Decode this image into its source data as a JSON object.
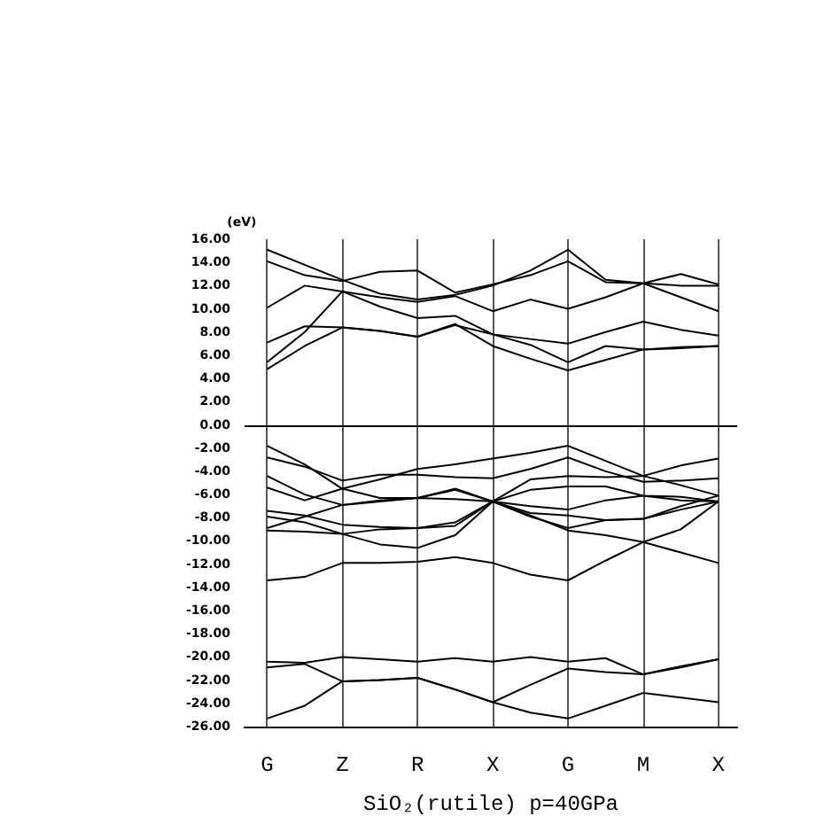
{
  "chart_data": {
    "type": "line",
    "xlabel": "SiO₂(rutile) p=40GPa",
    "ylabel": "(eV)",
    "categories": [
      "G",
      null,
      "Z",
      null,
      "R",
      null,
      "X",
      null,
      "G",
      null,
      "M",
      null,
      "X"
    ],
    "ylim": [
      -26,
      16
    ],
    "yticks": [
      {
        "value": -26,
        "label": "-26.00"
      },
      {
        "value": -24,
        "label": "-24.00"
      },
      {
        "value": -22,
        "label": "-22.00"
      },
      {
        "value": -20,
        "label": "-20.00"
      },
      {
        "value": -18,
        "label": "-18.00"
      },
      {
        "value": -16,
        "label": "-16.00"
      },
      {
        "value": -14,
        "label": "-14.00"
      },
      {
        "value": -12,
        "label": "-12.00"
      },
      {
        "value": -10,
        "label": "-10.00"
      },
      {
        "value": -8,
        "label": "-8.00"
      },
      {
        "value": -6,
        "label": "-6.00"
      },
      {
        "value": -4,
        "label": "-4.00"
      },
      {
        "value": -2,
        "label": "-2.00"
      },
      {
        "value": 0,
        "label": "0.00"
      },
      {
        "value": 2,
        "label": "2.00"
      },
      {
        "value": 4,
        "label": "4.00"
      },
      {
        "value": 6,
        "label": "6.00"
      },
      {
        "value": 8,
        "label": "8.00"
      },
      {
        "value": 10,
        "label": "10.00"
      },
      {
        "value": 12,
        "label": "12.00"
      },
      {
        "value": 14,
        "label": "14.00"
      },
      {
        "value": 16,
        "label": "16.00"
      }
    ],
    "grid": "x",
    "marker": "none",
    "line_style": "solid",
    "ref_lines": [
      {
        "axis": "y",
        "value": 0,
        "color": "#000000"
      }
    ],
    "series": [
      {
        "color": "#000000",
        "values": [
          4.8,
          6.8,
          8.4,
          8.1,
          7.6,
          8.7,
          6.8,
          5.7,
          4.7,
          5.6,
          6.5,
          6.6,
          6.8
        ]
      },
      {
        "color": "#000000",
        "values": [
          5.4,
          8.0,
          11.5,
          10.2,
          9.2,
          9.4,
          7.8,
          6.9,
          5.4,
          6.8,
          6.5,
          6.7,
          6.8
        ]
      },
      {
        "color": "#000000",
        "values": [
          7.1,
          8.5,
          8.4,
          8.1,
          7.6,
          8.6,
          7.8,
          7.4,
          7.0,
          8.0,
          8.9,
          8.2,
          7.7
        ]
      },
      {
        "color": "#000000",
        "values": [
          10.1,
          12.0,
          11.5,
          11.0,
          10.6,
          11.1,
          9.8,
          10.8,
          10.0,
          11.0,
          12.2,
          11.0,
          9.8
        ]
      },
      {
        "color": "#000000",
        "values": [
          14.1,
          12.9,
          12.4,
          13.2,
          13.3,
          11.4,
          12.1,
          12.9,
          14.1,
          12.3,
          12.2,
          13.0,
          12.1
        ]
      },
      {
        "color": "#000000",
        "values": [
          15.1,
          13.8,
          12.5,
          11.3,
          10.8,
          11.2,
          12.0,
          13.3,
          15.1,
          12.5,
          12.2,
          12.0,
          12.0
        ]
      },
      {
        "color": "#000000",
        "values": [
          -1.8,
          -3.4,
          -5.5,
          -4.7,
          -3.8,
          -3.4,
          -2.9,
          -2.4,
          -1.8,
          -3.1,
          -4.4,
          -3.5,
          -2.9
        ]
      },
      {
        "color": "#000000",
        "values": [
          -2.8,
          -3.6,
          -4.8,
          -4.3,
          -4.3,
          -4.5,
          -4.6,
          -3.8,
          -2.8,
          -4.0,
          -4.9,
          -4.8,
          -4.6
        ]
      },
      {
        "color": "#000000",
        "values": [
          -4.4,
          -6.0,
          -6.9,
          -6.5,
          -6.3,
          -5.5,
          -6.6,
          -4.7,
          -4.4,
          -4.5,
          -4.4,
          -5.2,
          -6.1
        ]
      },
      {
        "color": "#000000",
        "values": [
          -5.4,
          -6.5,
          -5.5,
          -6.3,
          -6.3,
          -5.6,
          -6.6,
          -5.6,
          -5.3,
          -5.3,
          -6.1,
          -6.2,
          -6.6
        ]
      },
      {
        "color": "#000000",
        "values": [
          -7.4,
          -7.8,
          -8.6,
          -8.8,
          -8.9,
          -8.4,
          -6.6,
          -7.0,
          -7.3,
          -6.5,
          -6.1,
          -6.5,
          -6.6
        ]
      },
      {
        "color": "#000000",
        "values": [
          -7.9,
          -8.4,
          -9.4,
          -9.0,
          -8.9,
          -8.7,
          -6.6,
          -7.6,
          -7.8,
          -8.2,
          -8.1,
          -7.3,
          -6.6
        ]
      },
      {
        "color": "#000000",
        "values": [
          -8.9,
          -7.9,
          -6.9,
          -6.6,
          -6.3,
          -6.4,
          -6.6,
          -7.9,
          -8.9,
          -8.2,
          -8.1,
          -7.0,
          -6.1
        ]
      },
      {
        "color": "#000000",
        "values": [
          -9.1,
          -9.2,
          -9.4,
          -10.3,
          -10.6,
          -9.5,
          -6.6,
          -7.8,
          -9.1,
          -9.5,
          -10.1,
          -11.0,
          -11.9
        ]
      },
      {
        "color": "#000000",
        "values": [
          -13.4,
          -13.1,
          -11.9,
          -11.9,
          -11.8,
          -11.4,
          -11.9,
          -12.9,
          -13.4,
          -11.7,
          -10.1,
          -9.0,
          -6.6
        ]
      },
      {
        "color": "#000000",
        "values": [
          -20.4,
          -20.5,
          -20.0,
          -20.2,
          -20.4,
          -20.1,
          -20.4,
          -20.0,
          -20.4,
          -20.1,
          -21.5,
          -20.8,
          -20.2
        ]
      },
      {
        "color": "#000000",
        "values": [
          -20.9,
          -20.6,
          -22.1,
          -22.0,
          -21.8,
          -22.8,
          -23.9,
          -22.4,
          -21.0,
          -21.3,
          -21.5,
          -20.9,
          -20.2
        ]
      },
      {
        "color": "#000000",
        "values": [
          -25.3,
          -24.2,
          -22.1,
          -22.0,
          -21.8,
          -22.8,
          -23.9,
          -24.8,
          -25.3,
          -24.2,
          -23.1,
          -23.5,
          -23.9
        ]
      }
    ]
  }
}
